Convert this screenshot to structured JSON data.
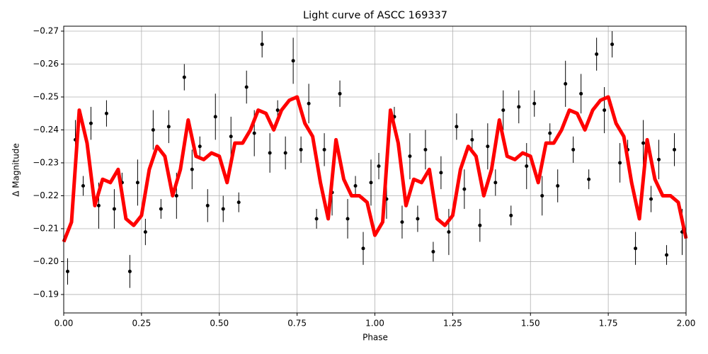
{
  "chart_data": {
    "type": "scatter",
    "title": "Light curve of ASCC 169337",
    "xlabel": "Phase",
    "ylabel": "Δ Magnitude",
    "xlim": [
      0,
      2
    ],
    "ylim": [
      -0.1844,
      -0.2715
    ],
    "grid": true,
    "xticks": [
      {
        "value": 0,
        "label": "0.00"
      },
      {
        "value": 0.25,
        "label": "0.25"
      },
      {
        "value": 0.5,
        "label": "0.50"
      },
      {
        "value": 0.75,
        "label": "0.75"
      },
      {
        "value": 1,
        "label": "1.00"
      },
      {
        "value": 1.25,
        "label": "1.25"
      },
      {
        "value": 1.5,
        "label": "1.50"
      },
      {
        "value": 1.75,
        "label": "1.75"
      },
      {
        "value": 2,
        "label": "2.00"
      }
    ],
    "yticks": [
      {
        "value": -0.27,
        "label": "−0.27"
      },
      {
        "value": -0.26,
        "label": "−0.26"
      },
      {
        "value": -0.25,
        "label": "−0.25"
      },
      {
        "value": -0.24,
        "label": "−0.24"
      },
      {
        "value": -0.23,
        "label": "−0.23"
      },
      {
        "value": -0.22,
        "label": "−0.22"
      },
      {
        "value": -0.21,
        "label": "−0.21"
      },
      {
        "value": -0.2,
        "label": "−0.20"
      },
      {
        "value": -0.19,
        "label": "−0.19"
      }
    ],
    "points": {
      "color": "#000000",
      "x": [
        0.0125,
        0.0375,
        0.0625,
        0.0875,
        0.1125,
        0.1375,
        0.1625,
        0.1875,
        0.2125,
        0.2375,
        0.2625,
        0.2875,
        0.3125,
        0.3375,
        0.3625,
        0.3875,
        0.4125,
        0.4375,
        0.4625,
        0.4875,
        0.5125,
        0.5375,
        0.5625,
        0.5875,
        0.6125,
        0.6375,
        0.6625,
        0.6875,
        0.7125,
        0.7375,
        0.7625,
        0.7875,
        0.8125,
        0.8375,
        0.8625,
        0.8875,
        0.9125,
        0.9375,
        0.9625,
        0.9875,
        1.0125,
        1.0375,
        1.0625,
        1.0875,
        1.1125,
        1.1375,
        1.1625,
        1.1875,
        1.2125,
        1.2375,
        1.2625,
        1.2875,
        1.3125,
        1.3375,
        1.3625,
        1.3875,
        1.4125,
        1.4375,
        1.4625,
        1.4875,
        1.5125,
        1.5375,
        1.5625,
        1.5875,
        1.6125,
        1.6375,
        1.6625,
        1.6875,
        1.7125,
        1.7375,
        1.7625,
        1.7875,
        1.8125,
        1.8375,
        1.8625,
        1.8875,
        1.9125,
        1.9375,
        1.9625,
        1.9875
      ],
      "y": [
        -0.197,
        -0.237,
        -0.223,
        -0.242,
        -0.217,
        -0.245,
        -0.216,
        -0.224,
        -0.197,
        -0.224,
        -0.209,
        -0.24,
        -0.216,
        -0.241,
        -0.22,
        -0.256,
        -0.228,
        -0.235,
        -0.217,
        -0.244,
        -0.216,
        -0.238,
        -0.218,
        -0.253,
        -0.239,
        -0.266,
        -0.233,
        -0.246,
        -0.233,
        -0.261,
        -0.234,
        -0.248,
        -0.213,
        -0.234,
        -0.221,
        -0.251,
        -0.213,
        -0.223,
        -0.204,
        -0.224,
        -0.229,
        -0.219,
        -0.244,
        -0.212,
        -0.232,
        -0.213,
        -0.234,
        -0.203,
        -0.227,
        -0.209,
        -0.241,
        -0.222,
        -0.237,
        -0.211,
        -0.235,
        -0.224,
        -0.246,
        -0.214,
        -0.247,
        -0.229,
        -0.248,
        -0.22,
        -0.239,
        -0.223,
        -0.254,
        -0.234,
        -0.251,
        -0.225,
        -0.263,
        -0.246,
        -0.266,
        -0.23,
        -0.234,
        -0.204,
        -0.236,
        -0.219,
        -0.231,
        -0.202,
        -0.234,
        -0.209
      ],
      "errors": [
        0.004,
        0.006,
        0.003,
        0.005,
        0.007,
        0.004,
        0.006,
        0.003,
        0.005,
        0.007,
        0.004,
        0.006,
        0.003,
        0.005,
        0.007,
        0.004,
        0.006,
        0.003,
        0.005,
        0.007,
        0.004,
        0.006,
        0.003,
        0.005,
        0.007,
        0.004,
        0.006,
        0.003,
        0.005,
        0.007,
        0.004,
        0.006,
        0.003,
        0.005,
        0.007,
        0.004,
        0.006,
        0.003,
        0.005,
        0.007,
        0.004,
        0.006,
        0.003,
        0.005,
        0.007,
        0.004,
        0.006,
        0.003,
        0.005,
        0.007,
        0.004,
        0.006,
        0.003,
        0.005,
        0.007,
        0.004,
        0.006,
        0.003,
        0.005,
        0.007,
        0.004,
        0.006,
        0.003,
        0.005,
        0.007,
        0.004,
        0.006,
        0.003,
        0.005,
        0.007,
        0.004,
        0.006,
        0.003,
        0.005,
        0.007,
        0.004,
        0.006,
        0.003,
        0.005,
        0.007
      ]
    },
    "line": {
      "color": "#ff0000",
      "x": [
        0,
        0.025,
        0.05,
        0.075,
        0.1,
        0.125,
        0.15,
        0.175,
        0.2,
        0.225,
        0.25,
        0.275,
        0.3,
        0.325,
        0.35,
        0.375,
        0.4,
        0.425,
        0.45,
        0.475,
        0.5,
        0.525,
        0.55,
        0.575,
        0.6,
        0.625,
        0.65,
        0.675,
        0.7,
        0.725,
        0.75,
        0.775,
        0.8,
        0.825,
        0.85,
        0.875,
        0.9,
        0.925,
        0.95,
        0.975,
        1,
        1.025,
        1.05,
        1.075,
        1.1,
        1.125,
        1.15,
        1.175,
        1.2,
        1.225,
        1.25,
        1.275,
        1.3,
        1.325,
        1.35,
        1.375,
        1.4,
        1.425,
        1.45,
        1.475,
        1.5,
        1.525,
        1.55,
        1.575,
        1.6,
        1.625,
        1.65,
        1.675,
        1.7,
        1.725,
        1.75,
        1.775,
        1.8,
        1.825,
        1.85,
        1.875,
        1.9,
        1.925,
        1.95,
        1.975,
        2
      ],
      "values": [
        -0.206,
        -0.212,
        -0.246,
        -0.236,
        -0.217,
        -0.225,
        -0.224,
        -0.228,
        -0.213,
        -0.211,
        -0.214,
        -0.228,
        -0.235,
        -0.232,
        -0.22,
        -0.228,
        -0.243,
        -0.232,
        -0.231,
        -0.233,
        -0.232,
        -0.224,
        -0.236,
        -0.236,
        -0.24,
        -0.246,
        -0.245,
        -0.24,
        -0.246,
        -0.249,
        -0.25,
        -0.242,
        -0.238,
        -0.224,
        -0.213,
        -0.237,
        -0.225,
        -0.22,
        -0.22,
        -0.218,
        -0.208,
        -0.212,
        -0.246,
        -0.236,
        -0.217,
        -0.225,
        -0.224,
        -0.228,
        -0.213,
        -0.211,
        -0.214,
        -0.228,
        -0.235,
        -0.232,
        -0.22,
        -0.228,
        -0.243,
        -0.232,
        -0.231,
        -0.233,
        -0.232,
        -0.224,
        -0.236,
        -0.236,
        -0.24,
        -0.246,
        -0.245,
        -0.24,
        -0.246,
        -0.249,
        -0.25,
        -0.242,
        -0.238,
        -0.224,
        -0.213,
        -0.237,
        -0.225,
        -0.22,
        -0.22,
        -0.218,
        -0.207
      ]
    }
  }
}
